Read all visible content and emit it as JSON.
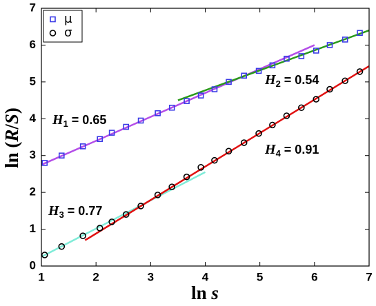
{
  "chart_data": {
    "type": "scatter",
    "xlabel_parts": [
      "ln ",
      "s"
    ],
    "ylabel_parts": [
      "ln (",
      "R",
      "/",
      "S",
      ")"
    ],
    "xlim": [
      1,
      7
    ],
    "ylim": [
      0,
      7
    ],
    "xticks": [
      1,
      2,
      3,
      4,
      5,
      6,
      7
    ],
    "yticks": [
      0,
      1,
      2,
      3,
      4,
      5,
      6,
      7
    ],
    "legend": "upper left",
    "series": [
      {
        "name": "μ",
        "marker": "square",
        "color": "#3a3ae6",
        "x": [
          1.06,
          1.37,
          1.76,
          2.07,
          2.29,
          2.55,
          2.82,
          3.13,
          3.39,
          3.66,
          3.92,
          4.17,
          4.43,
          4.71,
          4.98,
          5.23,
          5.49,
          5.76,
          6.03,
          6.28,
          6.56,
          6.83
        ],
        "values": [
          2.8,
          3.0,
          3.25,
          3.45,
          3.62,
          3.78,
          3.95,
          4.15,
          4.3,
          4.48,
          4.63,
          4.8,
          5.0,
          5.17,
          5.3,
          5.45,
          5.63,
          5.7,
          5.85,
          6.0,
          6.15,
          6.33
        ]
      },
      {
        "name": "σ",
        "marker": "circle",
        "color": "#000000",
        "x": [
          1.06,
          1.37,
          1.76,
          2.07,
          2.29,
          2.55,
          2.82,
          3.13,
          3.39,
          3.66,
          3.92,
          4.17,
          4.43,
          4.71,
          4.98,
          5.23,
          5.49,
          5.76,
          6.03,
          6.28,
          6.56,
          6.83
        ],
        "values": [
          0.3,
          0.53,
          0.82,
          1.03,
          1.2,
          1.4,
          1.63,
          1.93,
          2.15,
          2.42,
          2.68,
          2.87,
          3.12,
          3.35,
          3.6,
          3.83,
          4.08,
          4.3,
          4.53,
          4.8,
          5.03,
          5.28
        ]
      }
    ],
    "fits": [
      {
        "symbol": "H",
        "subscript": "1",
        "text": " = 0.65",
        "color": "#b44ee8",
        "x": [
          1,
          6
        ],
        "values": [
          2.75,
          6.0
        ]
      },
      {
        "symbol": "H",
        "subscript": "2",
        "text": " = 0.54",
        "color": "#2a9a1a",
        "x": [
          3.5,
          7
        ],
        "values": [
          4.5,
          6.4
        ]
      },
      {
        "symbol": "H",
        "subscript": "3",
        "text": " = 0.77",
        "color": "#7fecd8",
        "x": [
          1,
          4
        ],
        "values": [
          0.25,
          2.55
        ]
      },
      {
        "symbol": "H",
        "subscript": "4",
        "text": " = 0.91",
        "color": "#e01010",
        "x": [
          1.8,
          7
        ],
        "values": [
          0.7,
          5.43
        ]
      }
    ]
  }
}
